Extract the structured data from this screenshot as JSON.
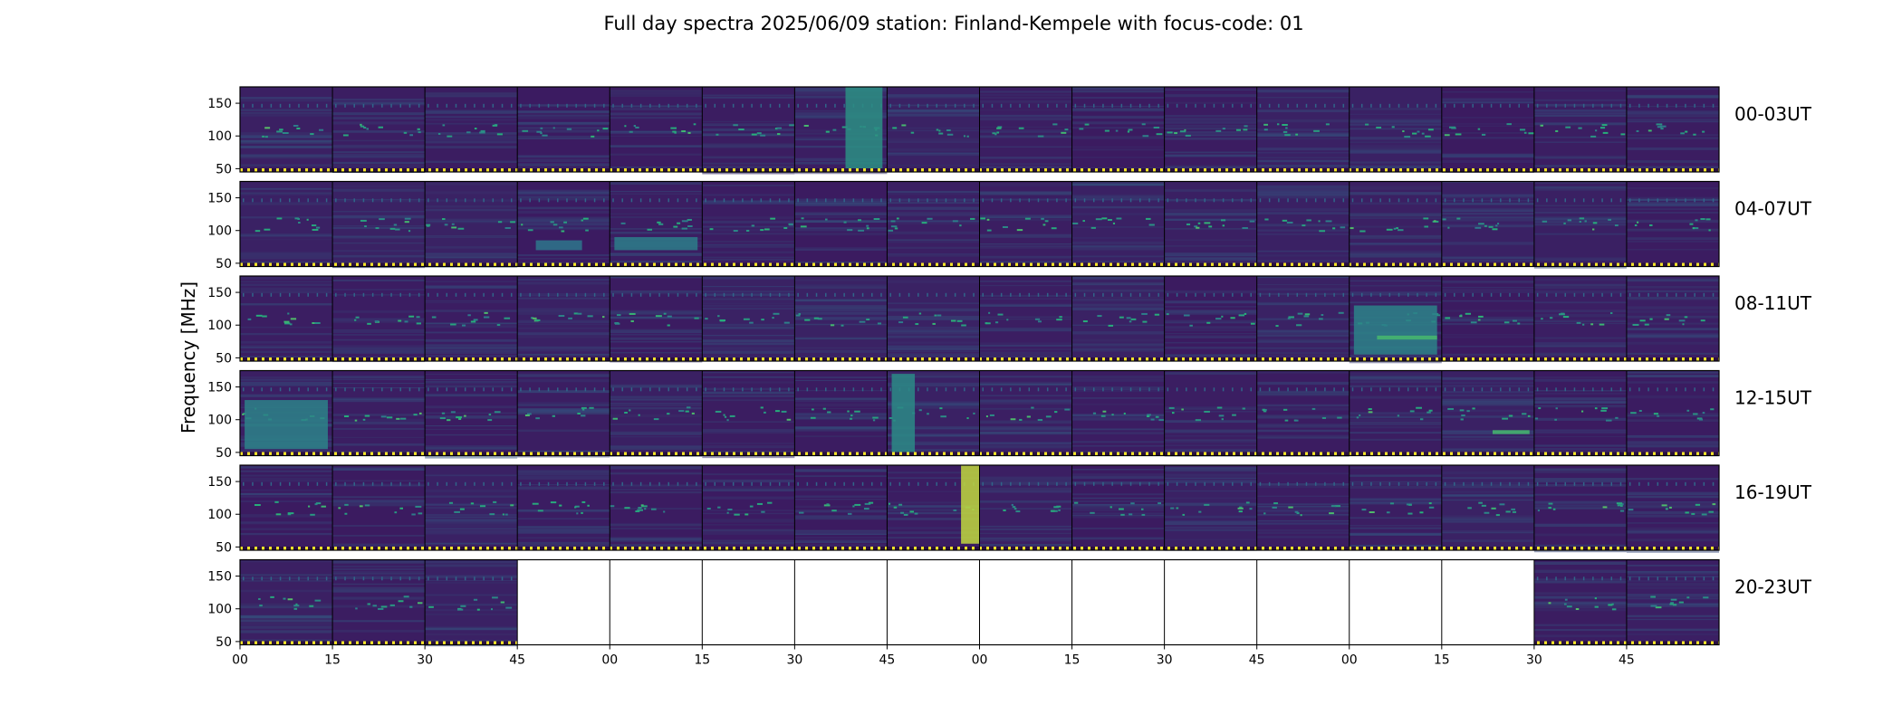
{
  "chart_data": {
    "type": "heatmap",
    "title": "Full day spectra 2025/06/09 station: Finland-Kempele with focus-code: 01",
    "ylabel": "Frequency [MHz]",
    "xlabel": "",
    "y_ticks": [
      50,
      100,
      150
    ],
    "ylim": [
      45,
      175
    ],
    "x_ticks": [
      "00",
      "15",
      "30",
      "45",
      "00",
      "15",
      "30",
      "45",
      "00",
      "15",
      "30",
      "45",
      "00",
      "15",
      "30",
      "45"
    ],
    "colormap": "viridis",
    "colors": {
      "background_low": "#3d0f5a",
      "mid": "#2f6f8e",
      "high": "#27b07a",
      "peak": "#f5e52a",
      "empty": "#ffffff"
    },
    "panels_per_row": 16,
    "rows": [
      {
        "label": "00-03UT",
        "panels_with_data": [
          1,
          1,
          1,
          1,
          1,
          1,
          1,
          1,
          1,
          1,
          1,
          1,
          1,
          1,
          1,
          1
        ],
        "bursts": [
          {
            "panel": 6,
            "x_frac": [
              0.55,
              0.95
            ],
            "freq_range": [
              50,
              175
            ],
            "intensity": 0.5
          }
        ]
      },
      {
        "label": "04-07UT",
        "panels_with_data": [
          1,
          1,
          1,
          1,
          1,
          1,
          1,
          1,
          1,
          1,
          1,
          1,
          1,
          1,
          1,
          1
        ],
        "bursts": [
          {
            "panel": 4,
            "x_frac": [
              0.05,
              0.95
            ],
            "freq_range": [
              70,
              90
            ],
            "intensity": 0.35
          },
          {
            "panel": 3,
            "x_frac": [
              0.2,
              0.7
            ],
            "freq_range": [
              70,
              85
            ],
            "intensity": 0.3
          }
        ]
      },
      {
        "label": "08-11UT",
        "panels_with_data": [
          1,
          1,
          1,
          1,
          1,
          1,
          1,
          1,
          1,
          1,
          1,
          1,
          1,
          1,
          1,
          1
        ],
        "bursts": [
          {
            "panel": 12,
            "x_frac": [
              0.05,
              0.95
            ],
            "freq_range": [
              55,
              130
            ],
            "intensity": 0.4
          },
          {
            "panel": 12,
            "x_frac": [
              0.3,
              0.95
            ],
            "freq_range": [
              78,
              84
            ],
            "intensity": 0.8
          }
        ]
      },
      {
        "label": "12-15UT",
        "panels_with_data": [
          1,
          1,
          1,
          1,
          1,
          1,
          1,
          1,
          1,
          1,
          1,
          1,
          1,
          1,
          1,
          1
        ],
        "bursts": [
          {
            "panel": 0,
            "x_frac": [
              0.05,
              0.95
            ],
            "freq_range": [
              55,
              130
            ],
            "intensity": 0.4
          },
          {
            "panel": 7,
            "x_frac": [
              0.05,
              0.3
            ],
            "freq_range": [
              50,
              170
            ],
            "intensity": 0.45
          },
          {
            "panel": 13,
            "x_frac": [
              0.55,
              0.95
            ],
            "freq_range": [
              78,
              84
            ],
            "intensity": 0.8
          }
        ]
      },
      {
        "label": "16-19UT",
        "panels_with_data": [
          1,
          1,
          1,
          1,
          1,
          1,
          1,
          1,
          1,
          1,
          1,
          1,
          1,
          1,
          1,
          1
        ],
        "bursts": [
          {
            "panel": 7,
            "x_frac": [
              0.8,
              1.0
            ],
            "freq_range": [
              55,
              175
            ],
            "intensity": 1.0
          }
        ]
      },
      {
        "label": "20-23UT",
        "panels_with_data": [
          1,
          1,
          1,
          0,
          0,
          0,
          0,
          0,
          0,
          0,
          0,
          0,
          0,
          0,
          1,
          1
        ],
        "bursts": []
      }
    ]
  }
}
